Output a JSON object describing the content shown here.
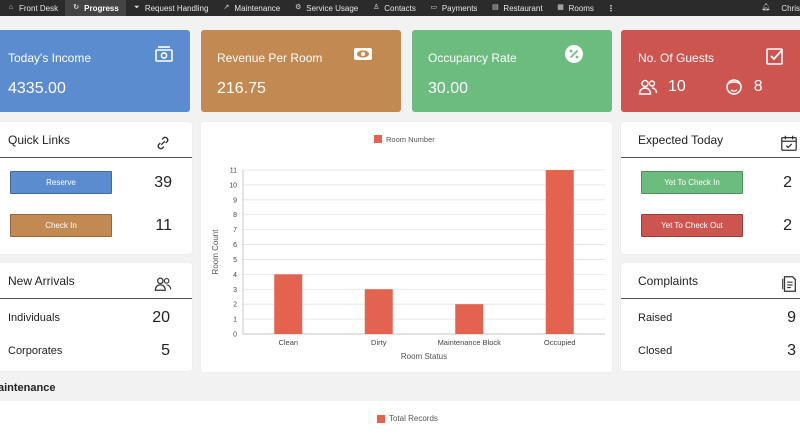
{
  "nav": {
    "items": [
      {
        "label": "Front Desk",
        "icon": "home-icon"
      },
      {
        "label": "Progress",
        "icon": "refresh-icon"
      },
      {
        "label": "Request Handling",
        "icon": "filter-icon"
      },
      {
        "label": "Maintenance",
        "icon": "external-link-icon"
      },
      {
        "label": "Service Usage",
        "icon": "settings-icon"
      },
      {
        "label": "Contacts",
        "icon": "user-icon"
      },
      {
        "label": "Payments",
        "icon": "card-icon"
      },
      {
        "label": "Restaurant",
        "icon": "restaurant-icon"
      },
      {
        "label": "Rooms",
        "icon": "bed-icon"
      }
    ],
    "active_index": 1,
    "bell_icon": "bell-icon",
    "user": "Chris"
  },
  "stats": {
    "income": {
      "title": "Today's Income",
      "value": "4335.00",
      "icon": "money-icon"
    },
    "revenue": {
      "title": "Revenue Per Room",
      "value": "216.75",
      "icon": "eye-icon"
    },
    "occupancy": {
      "title": "Occupancy Rate",
      "value": "30.00",
      "icon": "percent-icon"
    },
    "guests": {
      "title": "No. Of Guests",
      "adults": "10",
      "children": "8",
      "icon": "checkbox-icon"
    }
  },
  "quick_links": {
    "title": "Quick Links",
    "reserve": {
      "label": "Reserve",
      "count": "39"
    },
    "checkin": {
      "label": "Check In",
      "count": "11"
    }
  },
  "new_arrivals": {
    "title": "New Arrivals",
    "individuals": {
      "label": "Individuals",
      "value": "20"
    },
    "corporates": {
      "label": "Corporates",
      "value": "5"
    }
  },
  "expected": {
    "title": "Expected Today",
    "checkin": {
      "label": "Yet To Check In",
      "value": "2"
    },
    "checkout": {
      "label": "Yet To Check Out",
      "value": "2"
    }
  },
  "complaints": {
    "title": "Complaints",
    "raised": {
      "label": "Raised",
      "value": "9"
    },
    "closed": {
      "label": "Closed",
      "value": "3"
    }
  },
  "maintenance": {
    "label": "aintenance",
    "legend": "Total Records"
  },
  "colors": {
    "income": "#5b8ccf",
    "revenue": "#c38953",
    "occupancy": "#6cbc7f",
    "guests": "#cc5550",
    "bar": "#e3634f",
    "reserve_btn": "#5b8ccf",
    "checkin_btn": "#c38953",
    "yet_checkin_btn": "#6cbc7f",
    "yet_checkout_btn": "#cc5550"
  },
  "chart_data": {
    "type": "bar",
    "categories": [
      "Clean",
      "Dirty",
      "Maintenance Block",
      "Occupied"
    ],
    "series": [
      {
        "name": "Room Number",
        "values": [
          4,
          3,
          2,
          11
        ]
      }
    ],
    "xlabel": "Room Status",
    "ylabel": "Room Count",
    "ylim": [
      0,
      11
    ],
    "yticks": [
      0,
      1,
      2,
      3,
      4,
      5,
      6,
      7,
      8,
      9,
      10,
      11
    ],
    "grid": true,
    "legend": "top-center"
  }
}
